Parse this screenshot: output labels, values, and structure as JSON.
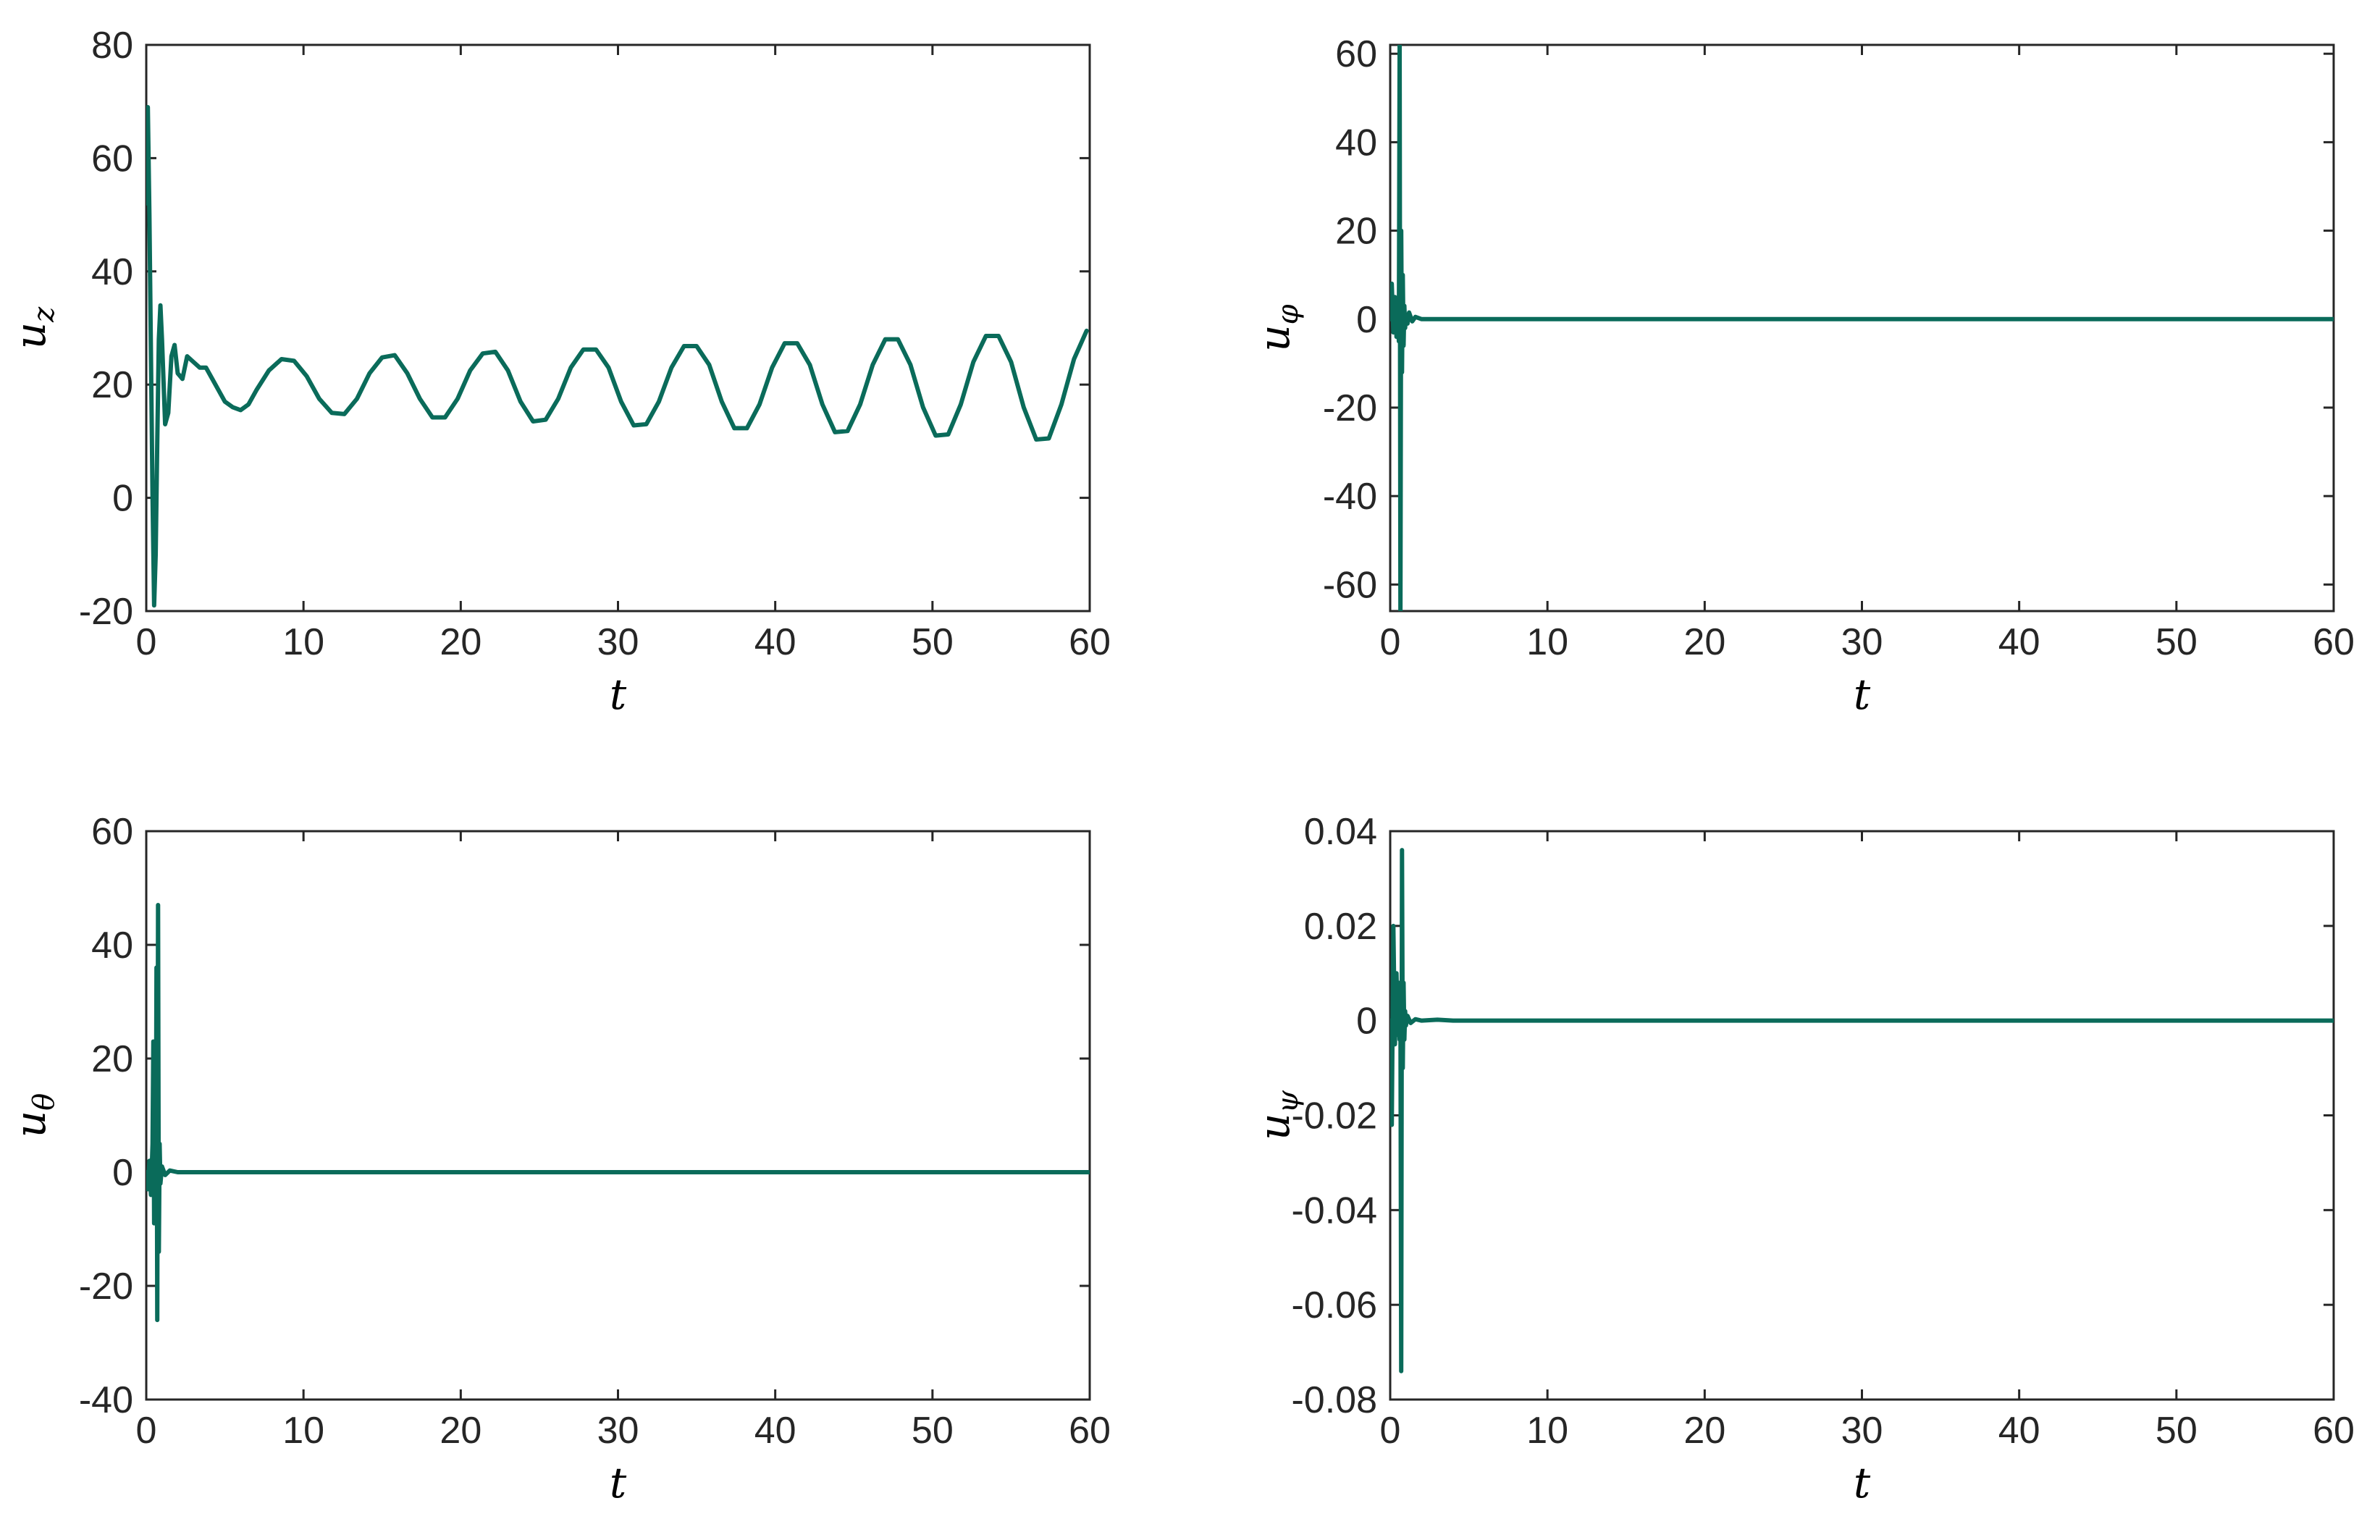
{
  "colors": {
    "line": "#0a6b5a",
    "axis": "#262626"
  },
  "chart_data": [
    {
      "type": "line",
      "xlabel": "t",
      "ylabel": "u",
      "ylabel_sub": "z",
      "xlim": [
        0,
        60
      ],
      "ylim": [
        -20,
        80
      ],
      "xticks": [
        0,
        10,
        20,
        30,
        40,
        50,
        60
      ],
      "yticks": [
        -20,
        0,
        20,
        40,
        60,
        80
      ],
      "xtick_labels": [
        "0",
        "10",
        "20",
        "30",
        "40",
        "50",
        "60"
      ],
      "ytick_labels": [
        "-20",
        "0",
        "20",
        "40",
        "60",
        "80"
      ],
      "grid": false,
      "series": [
        {
          "x": [
            0,
            0.1,
            0.2,
            0.3,
            0.4,
            0.5,
            0.6,
            0.7,
            0.8,
            0.9,
            1.0,
            1.2,
            1.4,
            1.6,
            1.8,
            2.0,
            2.3,
            2.6,
            3.0,
            3.4,
            3.8,
            4.2,
            4.6,
            5.0,
            5.5,
            6.0,
            6.5,
            7.0,
            7.8,
            8.6,
            9.4,
            10.2,
            11.0,
            11.8,
            12.6,
            13.4,
            14.2,
            15.0,
            15.8,
            16.6,
            17.4,
            18.2,
            19.0,
            19.8,
            20.6,
            21.4,
            22.2,
            23.0,
            23.8,
            24.6,
            25.4,
            26.2,
            27.0,
            27.8,
            28.6,
            29.4,
            30.2,
            31.0,
            31.8,
            32.6,
            33.4,
            34.2,
            35.0,
            35.8,
            36.6,
            37.4,
            38.2,
            39.0,
            39.8,
            40.6,
            41.4,
            42.2,
            43.0,
            43.8,
            44.6,
            45.4,
            46.2,
            47.0,
            47.8,
            48.6,
            49.4,
            50.2,
            51.0,
            51.8,
            52.6,
            53.4,
            54.2,
            55.0,
            55.8,
            56.6,
            57.4,
            58.2,
            59.0,
            59.8
          ],
          "y": [
            52,
            69,
            50,
            25,
            0,
            -19,
            -10,
            10,
            28,
            34,
            28,
            13,
            15,
            25,
            27,
            22,
            21,
            25,
            24,
            23,
            23,
            21,
            19,
            17,
            16,
            15.5,
            16.5,
            19,
            22.5,
            24.5,
            24.2,
            21.5,
            17.5,
            15,
            14.8,
            17.5,
            22,
            24.8,
            25.2,
            22,
            17.5,
            14.2,
            14.2,
            17.5,
            22.5,
            25.5,
            25.8,
            22.5,
            17,
            13.5,
            13.8,
            17.5,
            23,
            26.2,
            26.2,
            23,
            17,
            12.8,
            13,
            17,
            23,
            26.8,
            26.8,
            23.5,
            17,
            12.3,
            12.3,
            16.5,
            23,
            27.3,
            27.3,
            23.5,
            16.5,
            11.6,
            11.8,
            16.5,
            23.5,
            28,
            28,
            23.5,
            16,
            11,
            11.2,
            16.5,
            24,
            28.6,
            28.6,
            24,
            16,
            10.3,
            10.5,
            16.5,
            24.5,
            29.5
          ]
        }
      ]
    },
    {
      "type": "line",
      "xlabel": "t",
      "ylabel": "u",
      "ylabel_sub": "φ",
      "xlim": [
        0,
        60
      ],
      "ylim": [
        -66,
        62
      ],
      "xticks": [
        0,
        10,
        20,
        30,
        40,
        50,
        60
      ],
      "yticks": [
        -60,
        -40,
        -20,
        0,
        20,
        40,
        60
      ],
      "xtick_labels": [
        "0",
        "10",
        "20",
        "30",
        "40",
        "50",
        "60"
      ],
      "ytick_labels": [
        "-60",
        "-40",
        "-20",
        "0",
        "20",
        "40",
        "60"
      ],
      "grid": false,
      "series": [
        {
          "x": [
            0,
            0.1,
            0.2,
            0.3,
            0.4,
            0.5,
            0.55,
            0.6,
            0.65,
            0.7,
            0.75,
            0.8,
            0.85,
            0.9,
            0.95,
            1.0,
            1.1,
            1.2,
            1.4,
            1.6,
            2.0,
            3.0,
            60
          ],
          "y": [
            0,
            8,
            -3,
            5,
            -4,
            3,
            -5,
            62,
            -66,
            20,
            -12,
            10,
            -6,
            3,
            -2,
            1,
            -1,
            1.5,
            -0.5,
            0.5,
            0,
            0,
            0
          ]
        }
      ]
    },
    {
      "type": "line",
      "xlabel": "t",
      "ylabel": "u",
      "ylabel_sub": "θ",
      "xlim": [
        0,
        60
      ],
      "ylim": [
        -40,
        60
      ],
      "xticks": [
        0,
        10,
        20,
        30,
        40,
        50,
        60
      ],
      "yticks": [
        -40,
        -20,
        0,
        20,
        40,
        60
      ],
      "xtick_labels": [
        "0",
        "10",
        "20",
        "30",
        "40",
        "50",
        "60"
      ],
      "ytick_labels": [
        "-40",
        "-20",
        "0",
        "20",
        "40",
        "60"
      ],
      "grid": false,
      "series": [
        {
          "x": [
            0,
            0.1,
            0.2,
            0.3,
            0.4,
            0.45,
            0.5,
            0.55,
            0.6,
            0.65,
            0.7,
            0.75,
            0.8,
            0.85,
            0.9,
            1.0,
            1.2,
            1.5,
            2.0,
            60
          ],
          "y": [
            0,
            -3,
            2,
            -4,
            5,
            23,
            -9,
            10,
            -8,
            36,
            -26,
            47,
            -14,
            5,
            -2,
            1,
            -0.5,
            0.3,
            0,
            0
          ]
        }
      ]
    },
    {
      "type": "line",
      "xlabel": "t",
      "ylabel": "u",
      "ylabel_sub": "ψ",
      "xlim": [
        0,
        60
      ],
      "ylim": [
        -0.08,
        0.04
      ],
      "xticks": [
        0,
        10,
        20,
        30,
        40,
        50,
        60
      ],
      "yticks": [
        -0.08,
        -0.06,
        -0.04,
        -0.02,
        0,
        0.02,
        0.04
      ],
      "xtick_labels": [
        "0",
        "10",
        "20",
        "30",
        "40",
        "50",
        "60"
      ],
      "ytick_labels": [
        "-0.08",
        "-0.06",
        "-0.04",
        "-0.02",
        "0",
        "0.02",
        "0.04"
      ],
      "grid": false,
      "series": [
        {
          "x": [
            0,
            0.1,
            0.2,
            0.3,
            0.4,
            0.5,
            0.55,
            0.6,
            0.65,
            0.7,
            0.75,
            0.8,
            0.85,
            0.9,
            0.95,
            1.0,
            1.1,
            1.3,
            1.6,
            2.0,
            3.0,
            4.0,
            60
          ],
          "y": [
            0,
            -0.022,
            0.02,
            -0.005,
            0.01,
            -0.003,
            0.008,
            -0.004,
            0.005,
            -0.074,
            0.036,
            -0.01,
            0.008,
            -0.004,
            0.002,
            -0.001,
            0.001,
            -0.0005,
            0.0003,
            0,
            0.0002,
            0,
            0
          ]
        }
      ]
    }
  ]
}
